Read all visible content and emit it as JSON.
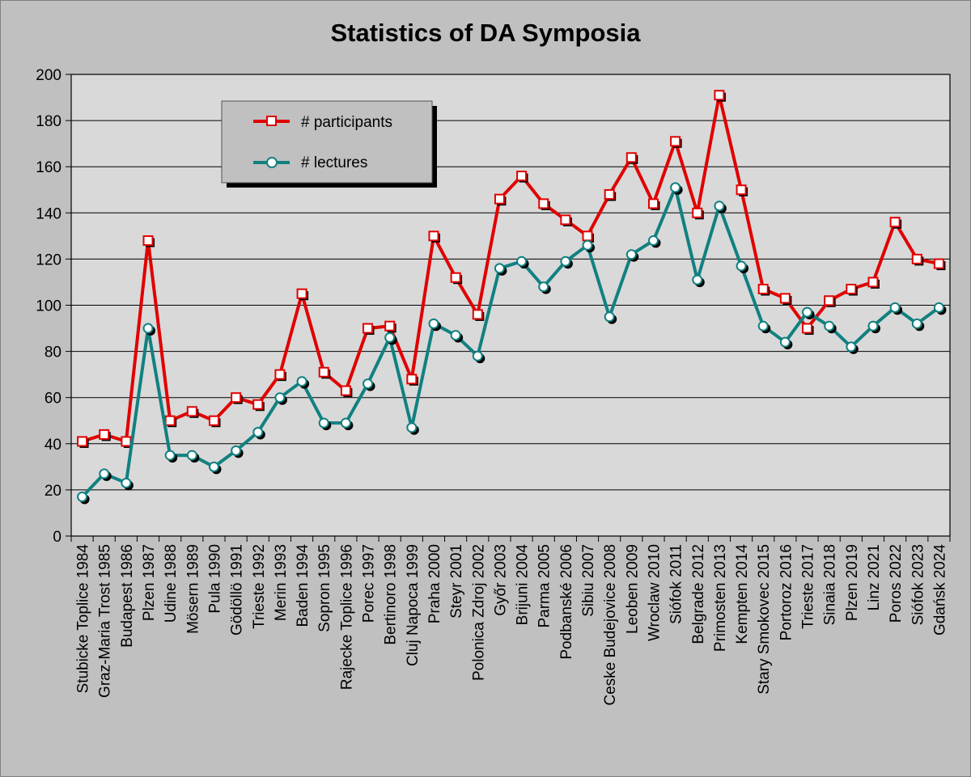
{
  "chart_data": {
    "type": "line",
    "title": "Statistics of DA Symposia",
    "categories": [
      "Stubicke Toplice 1984",
      "Graz-Maria Trost 1985",
      "Budapest 1986",
      "Plzen 1987",
      "Udine 1988",
      "Mösern 1989",
      "Pula 1990",
      "Gödöllö 1991",
      "Trieste 1992",
      "Merin 1993",
      "Baden 1994",
      "Sopron 1995",
      "Rajecke Toplice 1996",
      "Porec 1997",
      "Bertinoro 1998",
      "Cluj Napoca 1999",
      "Praha 2000",
      "Steyr 2001",
      "Polonica Zdroj 2002",
      "Győr 2003",
      "Brijuni 2004",
      "Parma 2005",
      "Podbanské 2006",
      "Sibiu 2007",
      "Ceske Budejovice 2008",
      "Leoben 2009",
      "Wroclaw 2010",
      "Siófok 2011",
      "Belgrade 2012",
      "Primosten 2013",
      "Kempten 2014",
      "Stary Smokovec 2015",
      "Portoroz 2016",
      "Trieste 2017",
      "Sinaia 2018",
      "Plzen 2019",
      "Linz 2021",
      "Poros 2022",
      "Siófok 2023",
      "Gdańsk 2024"
    ],
    "series": [
      {
        "name": "# participants",
        "color": "#e00000",
        "marker": "square",
        "values": [
          41,
          44,
          41,
          128,
          50,
          54,
          50,
          60,
          57,
          70,
          105,
          71,
          63,
          90,
          91,
          68,
          130,
          112,
          96,
          146,
          156,
          144,
          137,
          130,
          148,
          164,
          144,
          171,
          140,
          191,
          150,
          107,
          103,
          90,
          102,
          107,
          110,
          136,
          120,
          118
        ]
      },
      {
        "name": "# lectures",
        "color": "#118080",
        "marker": "circle",
        "values": [
          17,
          27,
          23,
          90,
          35,
          35,
          30,
          37,
          45,
          60,
          67,
          49,
          49,
          66,
          86,
          47,
          92,
          87,
          78,
          116,
          119,
          108,
          119,
          126,
          95,
          122,
          128,
          151,
          111,
          143,
          117,
          91,
          84,
          97,
          91,
          82,
          91,
          99,
          92,
          99
        ]
      }
    ],
    "yticks": [
      0,
      20,
      40,
      60,
      80,
      100,
      120,
      140,
      160,
      180,
      200
    ],
    "ylim": [
      0,
      200
    ],
    "grid": "horizontal",
    "legend": "top-left"
  }
}
